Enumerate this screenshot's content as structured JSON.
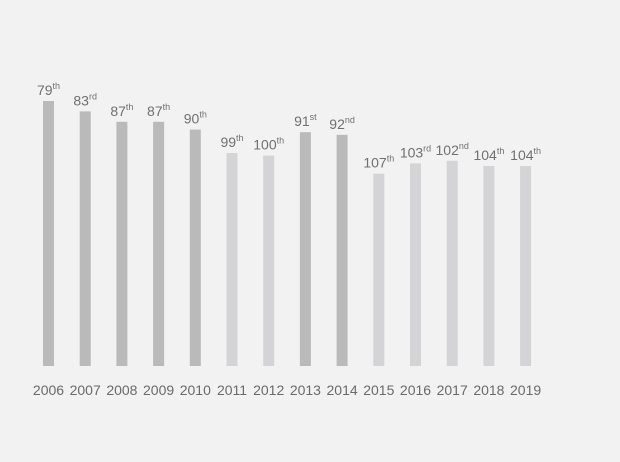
{
  "chart_data": {
    "type": "bar",
    "title": "",
    "xlabel": "",
    "ylabel": "",
    "categories": [
      "2006",
      "2007",
      "2008",
      "2009",
      "2010",
      "2011",
      "2012",
      "2013",
      "2014",
      "2015",
      "2016",
      "2017",
      "2018",
      "2019"
    ],
    "values": [
      79,
      83,
      87,
      87,
      90,
      99,
      100,
      91,
      92,
      107,
      103,
      102,
      104,
      104
    ],
    "labels": [
      {
        "num": "79",
        "suffix": "th"
      },
      {
        "num": "83",
        "suffix": "rd"
      },
      {
        "num": "87",
        "suffix": "th"
      },
      {
        "num": "87",
        "suffix": "th"
      },
      {
        "num": "90",
        "suffix": "th"
      },
      {
        "num": "99",
        "suffix": "th"
      },
      {
        "num": "100",
        "suffix": "th"
      },
      {
        "num": "91",
        "suffix": "st"
      },
      {
        "num": "92",
        "suffix": "nd"
      },
      {
        "num": "107",
        "suffix": "th"
      },
      {
        "num": "103",
        "suffix": "rd"
      },
      {
        "num": "102",
        "suffix": "nd"
      },
      {
        "num": "104",
        "suffix": "th"
      },
      {
        "num": "104",
        "suffix": "th"
      }
    ],
    "shades": [
      "dark",
      "dark",
      "dark",
      "dark",
      "dark",
      "light",
      "light",
      "dark",
      "dark",
      "light",
      "light",
      "light",
      "light",
      "light"
    ],
    "colors": {
      "dark": "#bababa",
      "light": "#d4d4d6",
      "background": "#f2f2f2",
      "text": "#707070"
    },
    "axis": {
      "inverted": true,
      "baseline_rank": 181
    }
  }
}
